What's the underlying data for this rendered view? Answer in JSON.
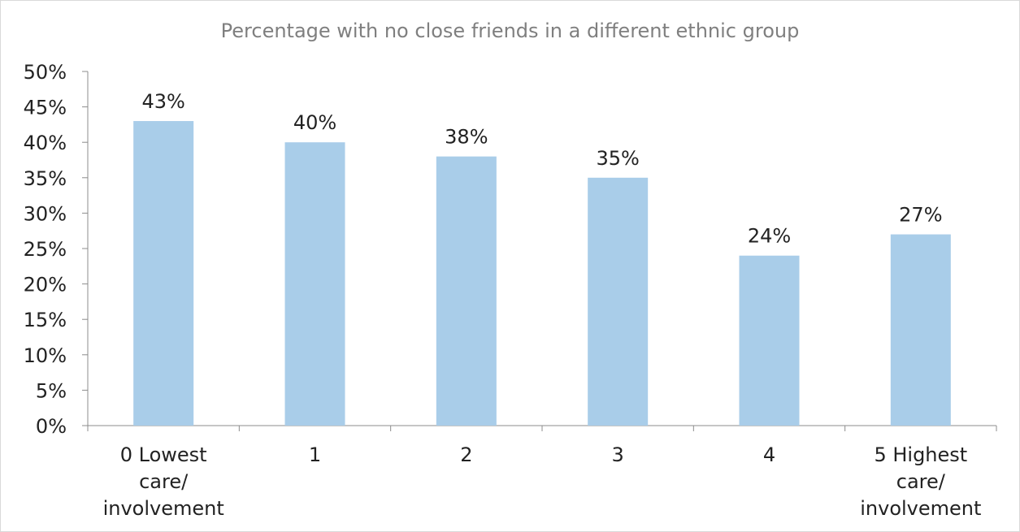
{
  "chart_data": {
    "type": "bar",
    "title": "Percentage with no close friends in a different ethnic group",
    "categories": [
      [
        "0 Lowest",
        "care/",
        "involvement"
      ],
      [
        "1"
      ],
      [
        "2"
      ],
      [
        "3"
      ],
      [
        "4"
      ],
      [
        "5 Highest",
        "care/",
        "involvement"
      ]
    ],
    "values": [
      43,
      40,
      38,
      35,
      24,
      27
    ],
    "data_labels": [
      "43%",
      "40%",
      "38%",
      "35%",
      "24%",
      "27%"
    ],
    "y_ticks": [
      "0%",
      "5%",
      "10%",
      "15%",
      "20%",
      "25%",
      "30%",
      "35%",
      "40%",
      "45%",
      "50%"
    ],
    "ylim": [
      0,
      50
    ],
    "xlabel": "",
    "ylabel": "",
    "grid": false,
    "legend": "none",
    "bar_color": "#a9cde9",
    "axis_color": "#8c8c8c"
  }
}
